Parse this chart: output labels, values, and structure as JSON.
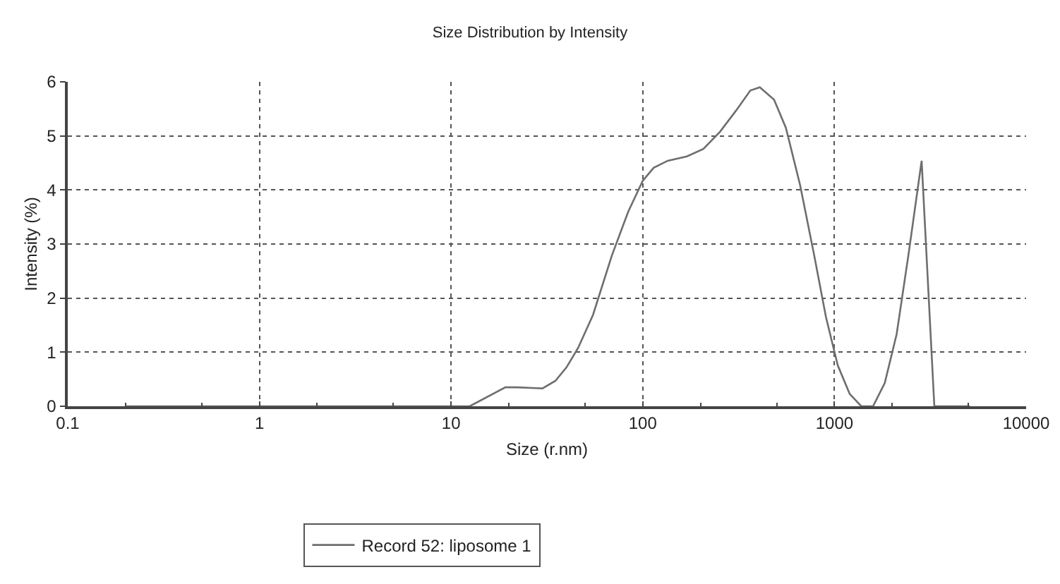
{
  "chart_data": {
    "type": "line",
    "title": "Size Distribution by Intensity",
    "xlabel": "Size (r.nm)",
    "ylabel": "Intensity (%)",
    "log": "x",
    "xlim": [
      0.1,
      10000
    ],
    "xticks": [
      0.1,
      1,
      10,
      100,
      1000,
      10000
    ],
    "ylim": [
      0,
      6
    ],
    "yticks": [
      0,
      1,
      2,
      3,
      4,
      5,
      6
    ],
    "grid": true,
    "legend": "bottom",
    "marker": "none",
    "line_style": "solid",
    "series": [
      {
        "name": "Record 52: liposome 1",
        "color": "#6e6e6e",
        "x": [
          0.2,
          12.5,
          19.2,
          22,
          30,
          35,
          40,
          46,
          55,
          69,
          84,
          100,
          114,
          135,
          170,
          207,
          252,
          307,
          364,
          408,
          484,
          558,
          662,
          784,
          903,
          1040,
          1200,
          1380,
          1590,
          1830,
          2110,
          2430,
          2850,
          3320,
          5080
        ],
        "values": [
          0,
          0,
          0.35,
          0.35,
          0.33,
          0.47,
          0.72,
          1.08,
          1.69,
          2.79,
          3.6,
          4.17,
          4.41,
          4.54,
          4.62,
          4.76,
          5.07,
          5.47,
          5.84,
          5.9,
          5.67,
          5.15,
          4.09,
          2.79,
          1.65,
          0.76,
          0.23,
          0,
          0,
          0.43,
          1.33,
          2.79,
          4.54,
          0,
          0
        ]
      }
    ]
  }
}
